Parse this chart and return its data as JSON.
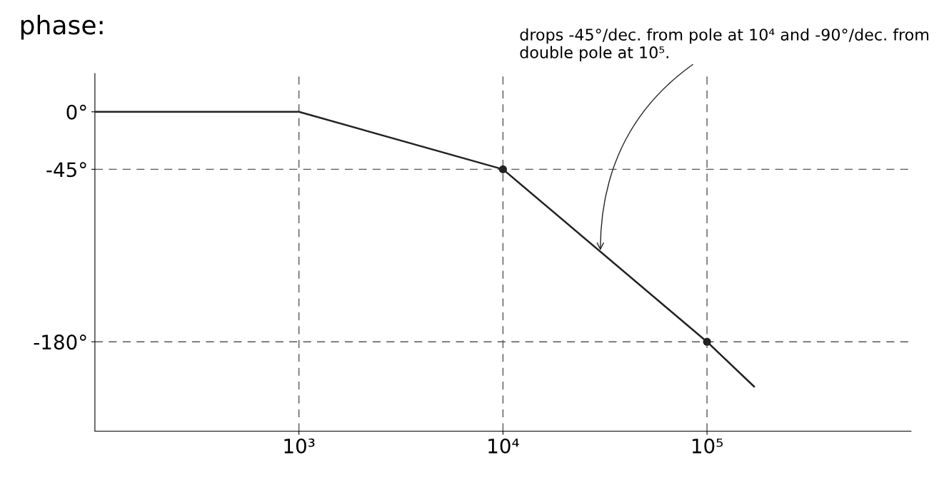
{
  "chart_data": {
    "type": "line",
    "title": "phase:",
    "log": "x",
    "x": [
      100,
      1000,
      10000,
      100000,
      170000
    ],
    "series": [
      {
        "color": "#222222",
        "values": [
          0,
          0,
          -45,
          -180,
          -215
        ],
        "marker": "none",
        "line_style": "solid"
      },
      {
        "type": "scatter",
        "color": "#222222",
        "x": [
          10000,
          100000
        ],
        "values": [
          -45,
          -180
        ],
        "marker": "circle"
      }
    ],
    "xlim": [
      100,
      1000000
    ],
    "ylim": [
      -250,
      30
    ],
    "xticks": [
      {
        "value": 1000,
        "label": "10³"
      },
      {
        "value": 10000,
        "label": "10⁴"
      },
      {
        "value": 100000,
        "label": "10⁵"
      }
    ],
    "yticks": [
      {
        "value": 0,
        "label": "0°"
      },
      {
        "value": -45,
        "label": "-45°"
      },
      {
        "value": -180,
        "label": "-180°"
      }
    ],
    "ref_lines": [
      {
        "axis": "x",
        "value": 1000,
        "line_style": "dashed",
        "color": "#555555"
      },
      {
        "axis": "x",
        "value": 10000,
        "line_style": "dashed",
        "color": "#555555"
      },
      {
        "axis": "x",
        "value": 100000,
        "line_style": "dashed",
        "color": "#555555"
      },
      {
        "axis": "y",
        "value": -45,
        "line_style": "dashed",
        "color": "#555555"
      },
      {
        "axis": "y",
        "value": -180,
        "line_style": "dashed",
        "color": "#555555"
      }
    ],
    "annotations": [
      {
        "text": "drops -45°/dec. from pole at 10⁴ and -90°/dec. from double pole at 10⁵.",
        "x": 30000,
        "y": -110
      }
    ],
    "grid": false,
    "legend": false
  }
}
